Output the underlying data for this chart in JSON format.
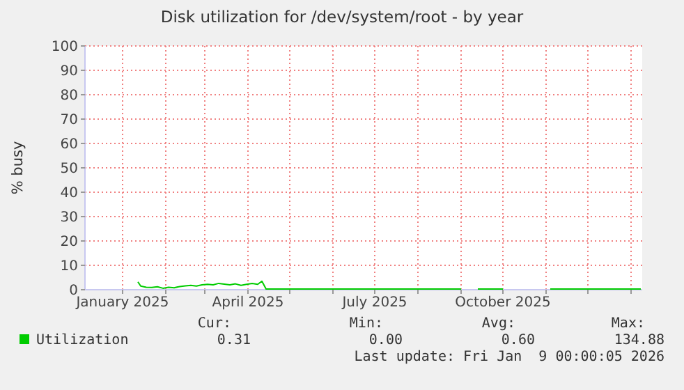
{
  "chart_data": {
    "type": "line",
    "title": "Disk utilization for /dev/system/root - by year",
    "ylabel": "% busy",
    "xlim": [
      "2024-12-05",
      "2026-01-09"
    ],
    "xticks": [
      {
        "value": "2025-01-01",
        "label": "January 2025"
      },
      {
        "value": "2025-02-01",
        "label": null
      },
      {
        "value": "2025-03-01",
        "label": null
      },
      {
        "value": "2025-04-01",
        "label": "April 2025"
      },
      {
        "value": "2025-05-01",
        "label": null
      },
      {
        "value": "2025-06-01",
        "label": null
      },
      {
        "value": "2025-07-01",
        "label": "July 2025"
      },
      {
        "value": "2025-08-01",
        "label": null
      },
      {
        "value": "2025-09-01",
        "label": null
      },
      {
        "value": "2025-10-01",
        "label": "October 2025"
      },
      {
        "value": "2025-11-01",
        "label": null
      },
      {
        "value": "2025-12-01",
        "label": null
      },
      {
        "value": "2026-01-01",
        "label": null
      }
    ],
    "ylim": [
      0,
      100
    ],
    "yticks": [
      0,
      10,
      20,
      30,
      40,
      50,
      60,
      70,
      80,
      90,
      100
    ],
    "grid": true,
    "legend": "bottom",
    "marker": "none",
    "line_style": "solid",
    "series": [
      {
        "name": "Utilization",
        "color": "#00cc00",
        "x": [
          "2025-01-12",
          "2025-01-14",
          "2025-01-18",
          "2025-01-22",
          "2025-01-26",
          "2025-01-30",
          "2025-02-03",
          "2025-02-07",
          "2025-02-11",
          "2025-02-15",
          "2025-02-19",
          "2025-02-23",
          "2025-02-27",
          "2025-03-03",
          "2025-03-07",
          "2025-03-11",
          "2025-03-15",
          "2025-03-19",
          "2025-03-23",
          "2025-03-27",
          "2025-03-31",
          "2025-04-04",
          "2025-04-08",
          "2025-04-11",
          "2025-04-14",
          "2025-05-01",
          "2025-06-01",
          "2025-07-01",
          "2025-08-01",
          "2025-09-01",
          "2025-09-02",
          "2025-09-13",
          "2025-10-01",
          "2025-10-10",
          "2025-11-04",
          "2025-12-01",
          "2026-01-08"
        ],
        "values": [
          3.2,
          1.5,
          1.0,
          0.9,
          1.2,
          0.6,
          1.0,
          0.8,
          1.3,
          1.6,
          1.8,
          1.5,
          2.0,
          2.2,
          2.0,
          2.6,
          2.3,
          2.0,
          2.4,
          1.8,
          2.2,
          2.6,
          2.2,
          3.5,
          0.3,
          0.3,
          0.3,
          0.3,
          0.3,
          0.3,
          null,
          0.3,
          0.3,
          null,
          0.3,
          0.3,
          0.3
        ]
      }
    ],
    "annotations": [
      "Cur:",
      "Min:",
      "Avg:",
      "Max:",
      "0.31",
      "0.00",
      "0.60",
      "134.88",
      "Last update: Fri Jan  9 00:00:05 2026"
    ]
  }
}
